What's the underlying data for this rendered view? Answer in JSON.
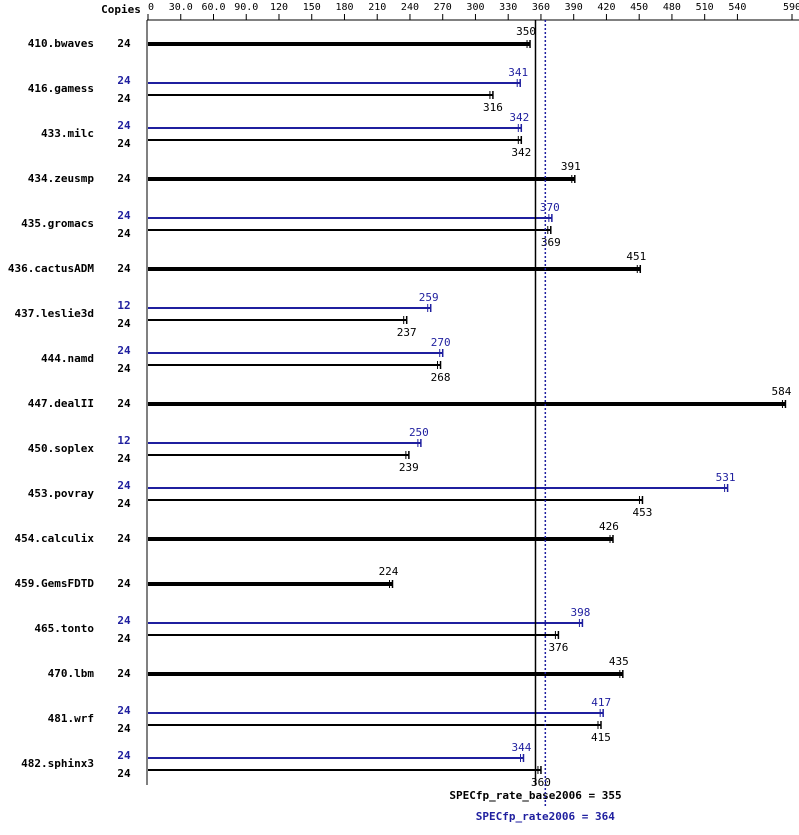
{
  "chart_data": {
    "type": "spec-bar",
    "copies_header": "Copies",
    "categories": [
      "410.bwaves",
      "416.gamess",
      "433.milc",
      "434.zeusmp",
      "435.gromacs",
      "436.cactusADM",
      "437.leslie3d",
      "444.namd",
      "447.dealII",
      "450.soplex",
      "453.povray",
      "454.calculix",
      "459.GemsFDTD",
      "465.tonto",
      "470.lbm",
      "481.wrf",
      "482.sphinx3"
    ],
    "series": [
      {
        "color": "#1f1f9f",
        "copies": [
          null,
          24,
          24,
          null,
          24,
          null,
          12,
          24,
          null,
          12,
          24,
          null,
          null,
          24,
          null,
          24,
          24
        ],
        "values": [
          null,
          341,
          342,
          null,
          370,
          null,
          259,
          270,
          null,
          250,
          531,
          null,
          null,
          398,
          null,
          417,
          344
        ]
      },
      {
        "color": "#000000",
        "copies": [
          24,
          24,
          24,
          24,
          24,
          24,
          24,
          24,
          24,
          24,
          24,
          24,
          24,
          24,
          24,
          24,
          24
        ],
        "values": [
          350,
          316,
          342,
          391,
          369,
          451,
          237,
          268,
          584,
          239,
          453,
          426,
          224,
          376,
          435,
          415,
          360
        ]
      }
    ],
    "reference_lines": [
      {
        "value": 355,
        "label": "SPECfp_rate_base2006 = 355",
        "color": "#000000",
        "dash": false
      },
      {
        "value": 364,
        "label": "SPECfp_rate2006 = 364",
        "color": "#1f1f9f",
        "dash": true
      }
    ],
    "xlim": [
      0,
      590
    ],
    "xticks": [
      0,
      {
        "value": 30,
        "label": "30.0"
      },
      {
        "value": 60,
        "label": "60.0"
      },
      {
        "value": 90,
        "label": "90.0"
      },
      120,
      150,
      180,
      210,
      240,
      270,
      300,
      330,
      360,
      390,
      420,
      450,
      480,
      510,
      540,
      590
    ]
  }
}
